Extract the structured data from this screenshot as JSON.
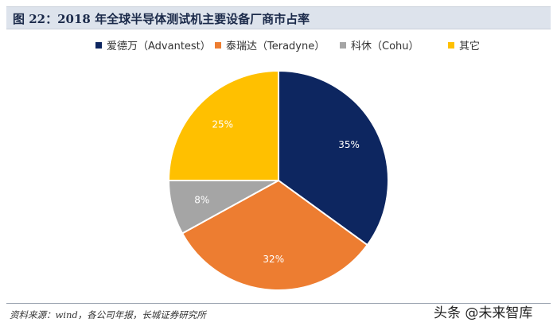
{
  "header": {
    "figure_title": "图 22：2018 年全球半导体测试机主要设备厂商市占率"
  },
  "chart_data": {
    "type": "pie",
    "title": "图 22：2018 年全球半导体测试机主要设备厂商市占率",
    "legend_position": "top",
    "slices": [
      {
        "name": "爱德万（Advantest）",
        "value": 35,
        "label": "35%",
        "color": "#0d2660"
      },
      {
        "name": "泰瑞达（Teradyne）",
        "value": 32,
        "label": "32%",
        "color": "#ed7d31"
      },
      {
        "name": "科休（Cohu）",
        "value": 8,
        "label": "8%",
        "color": "#a5a5a5"
      },
      {
        "name": "其它",
        "value": 25,
        "label": "25%",
        "color": "#ffc000"
      }
    ]
  },
  "footer": {
    "source": "资料来源：wind，各公司年报，长城证券研究所",
    "watermark": "头条 @未来智库"
  }
}
